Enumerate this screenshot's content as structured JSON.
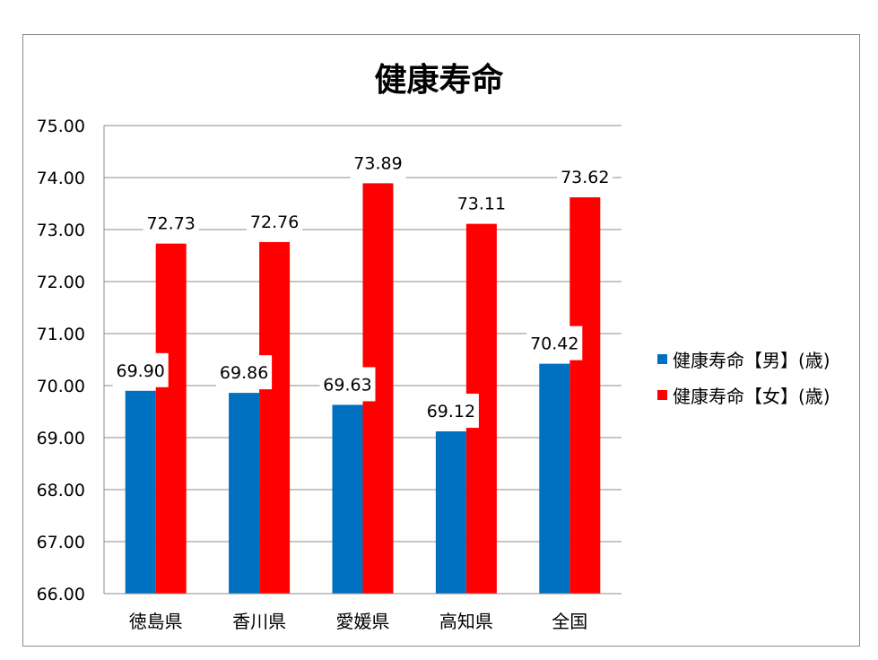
{
  "chart_data": {
    "type": "bar",
    "title": "健康寿命",
    "categories": [
      "徳島県",
      "香川県",
      "愛媛県",
      "高知県",
      "全国"
    ],
    "series": [
      {
        "name": "健康寿命【男】(歳)",
        "color": "#0070c0",
        "values": [
          69.9,
          69.86,
          69.63,
          69.12,
          70.42
        ]
      },
      {
        "name": "健康寿命【女】(歳)",
        "color": "#ff0000",
        "values": [
          72.73,
          72.76,
          73.89,
          73.11,
          73.62
        ]
      }
    ],
    "ylim": [
      66,
      75
    ],
    "ytick_step": 1,
    "ytick_labels": [
      "66.00",
      "67.00",
      "68.00",
      "69.00",
      "70.00",
      "71.00",
      "72.00",
      "73.00",
      "74.00",
      "75.00"
    ],
    "data_labels": [
      [
        "69.90",
        "69.86",
        "69.63",
        "69.12",
        "70.42"
      ],
      [
        "72.73",
        "72.76",
        "73.89",
        "73.11",
        "73.62"
      ]
    ],
    "grid": true,
    "legend_position": "right"
  }
}
